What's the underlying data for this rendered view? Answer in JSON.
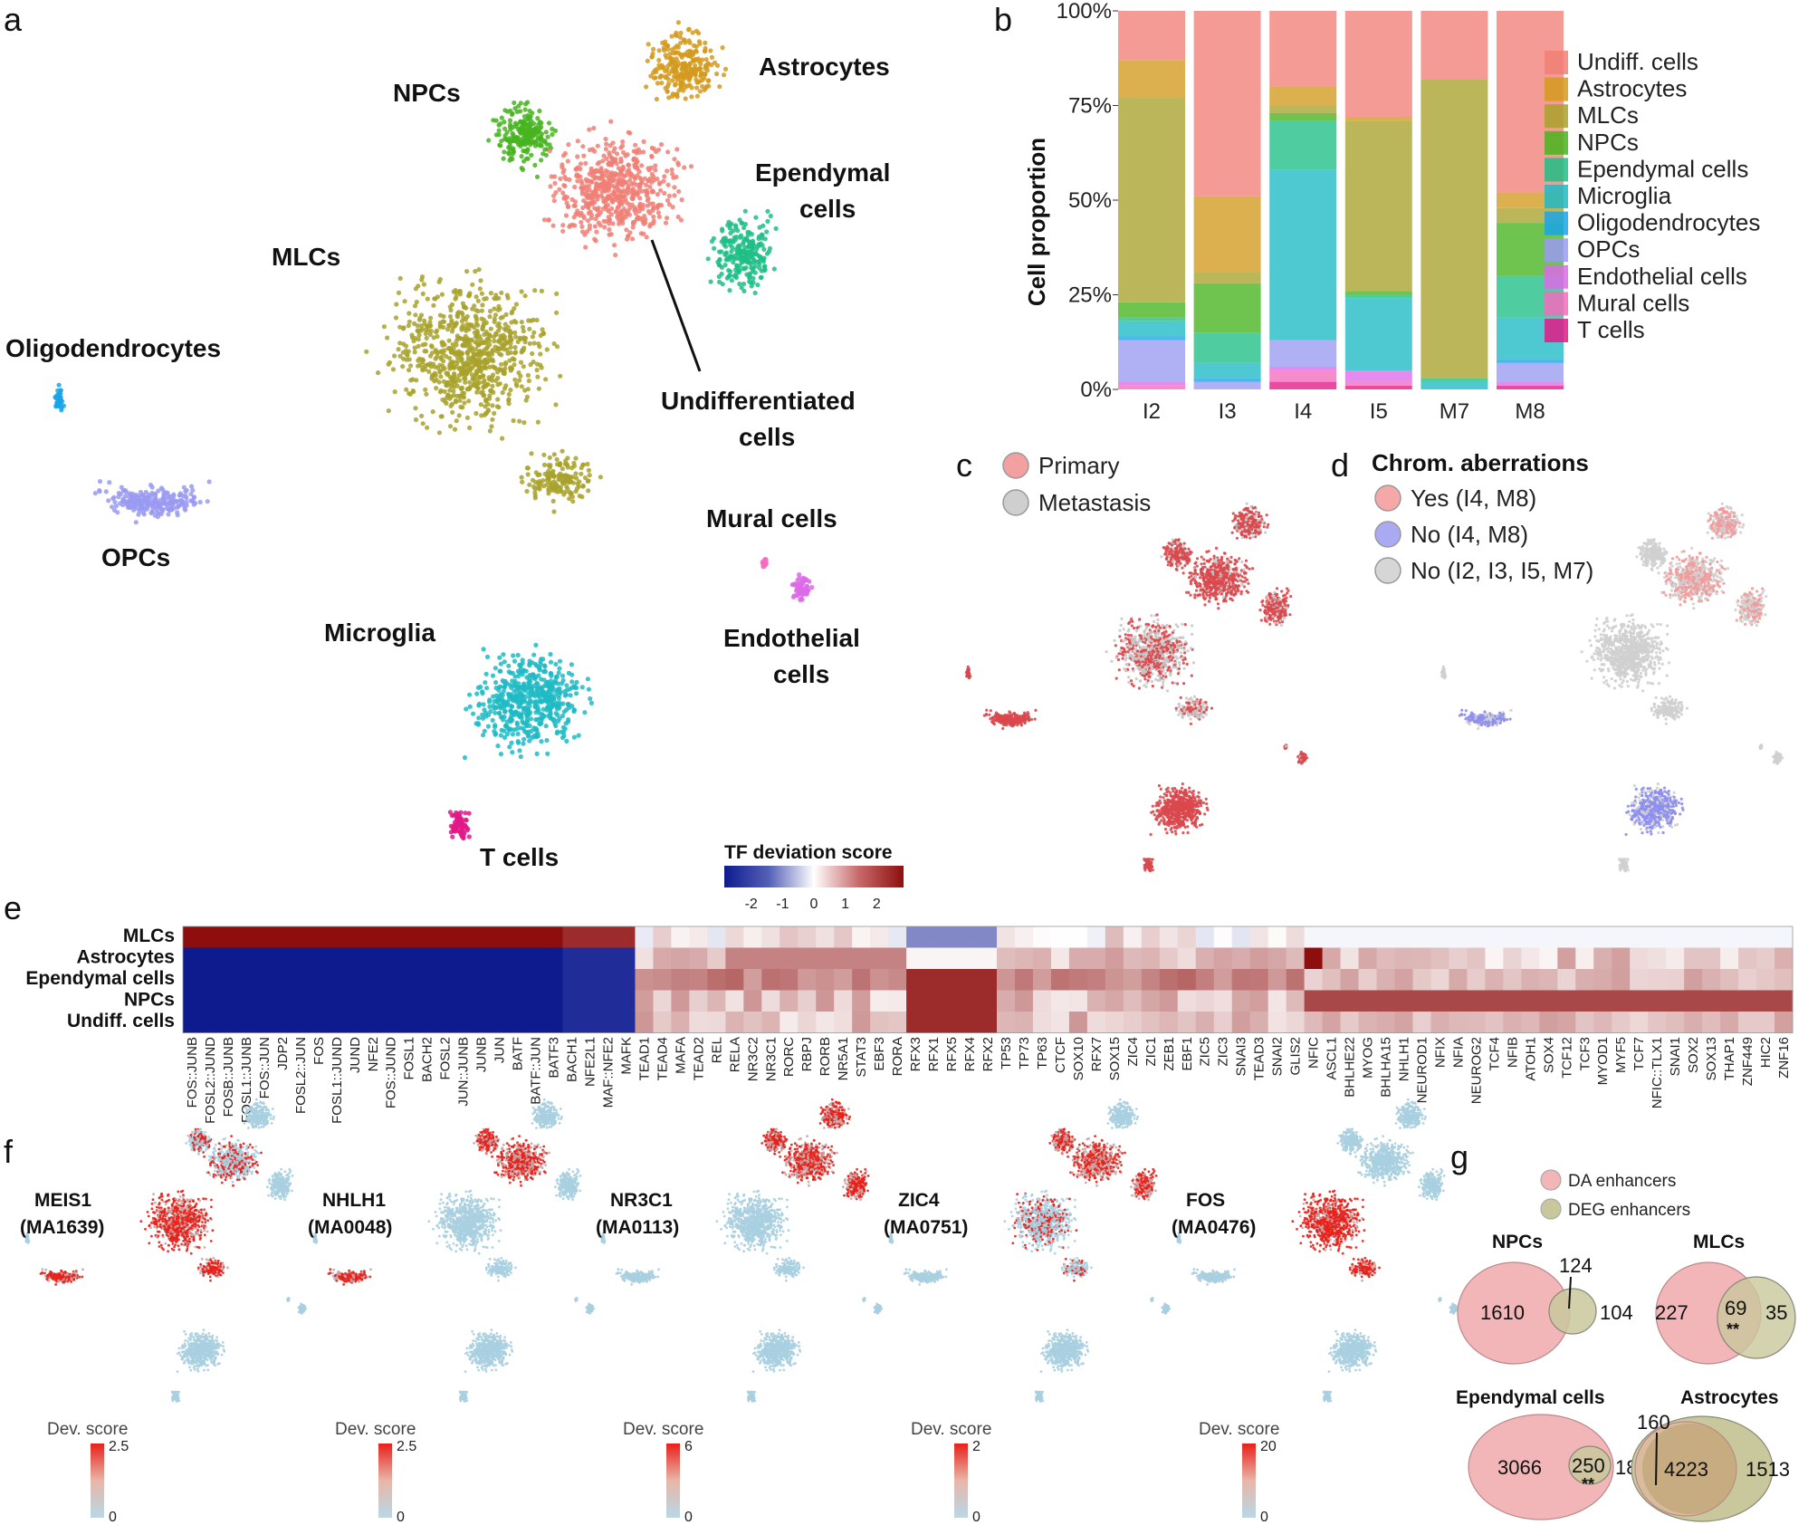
{
  "panels": {
    "a": "a",
    "b": "b",
    "c": "c",
    "d": "d",
    "e": "e",
    "f": "f",
    "g": "g"
  },
  "colors": {
    "undiff": "#f07f76",
    "astro": "#d49a1e",
    "mlc": "#a8a22c",
    "npc": "#46b41f",
    "ependymal": "#1fbe86",
    "microglia": "#1ebac4",
    "oligo": "#1aa4e8",
    "opc": "#9a9af2",
    "endothelial": "#dd6ae8",
    "mural": "#f56bbd",
    "tcells": "#e01a86",
    "primary": "#d9484c",
    "metastasis": "#c8c8c8",
    "chrom_yes": "#f29a9a",
    "chrom_no_i4m8": "#8e8ef0",
    "chrom_no_other": "#cfcfcf",
    "da": "#f2b6b8",
    "deg": "#c9c89c"
  },
  "panel_a": {
    "labels": {
      "astrocytes": "Astrocytes",
      "npcs": "NPCs",
      "ependymal1": "Ependymal",
      "ependymal2": "cells",
      "mlcs": "MLCs",
      "oligo": "Oligodendrocytes",
      "undiff1": "Undifferentiated",
      "undiff2": "cells",
      "opcs": "OPCs",
      "mural": "Mural cells",
      "endo1": "Endothelial",
      "endo2": "cells",
      "microglia": "Microglia",
      "tcells": "T cells"
    }
  },
  "chart_data": [
    {
      "type": "bar",
      "stacked": true,
      "title": "",
      "ylabel": "Cell proportion",
      "xlabel": "",
      "categories": [
        "I2",
        "I3",
        "I4",
        "I5",
        "M7",
        "M8"
      ],
      "yticks": [
        "0%",
        "25%",
        "50%",
        "75%",
        "100%"
      ],
      "ylim": [
        0,
        100
      ],
      "series": [
        {
          "name": "T cells",
          "color": "#e01a86",
          "values": [
            0,
            0,
            2,
            1,
            0,
            1
          ]
        },
        {
          "name": "Mural cells",
          "color": "#f56bbd",
          "values": [
            1,
            0,
            3,
            1,
            0,
            0
          ]
        },
        {
          "name": "Endothelial cells",
          "color": "#dd6ae8",
          "values": [
            1,
            0,
            1,
            3,
            0,
            1
          ]
        },
        {
          "name": "OPCs",
          "color": "#9a9af2",
          "values": [
            11,
            2,
            7,
            0,
            0,
            5
          ]
        },
        {
          "name": "Oligodendrocytes",
          "color": "#1aa4e8",
          "values": [
            1,
            1,
            0,
            0,
            0,
            1
          ]
        },
        {
          "name": "Microglia",
          "color": "#1ebac4",
          "values": [
            4,
            4,
            45,
            19,
            2,
            11
          ]
        },
        {
          "name": "Ependymal cells",
          "color": "#1fbe86",
          "values": [
            1,
            8,
            13,
            1,
            1,
            11
          ]
        },
        {
          "name": "NPCs",
          "color": "#46b41f",
          "values": [
            4,
            13,
            2,
            1,
            0,
            14
          ]
        },
        {
          "name": "MLCs",
          "color": "#a8a22c",
          "values": [
            54,
            3,
            2,
            45,
            79,
            4
          ]
        },
        {
          "name": "Astrocytes",
          "color": "#d49a1e",
          "values": [
            10,
            20,
            5,
            1,
            0,
            4
          ]
        },
        {
          "name": "Undiff. cells",
          "color": "#f07f76",
          "values": [
            13,
            49,
            20,
            28,
            18,
            48
          ]
        }
      ],
      "legend": [
        "Undiff. cells",
        "Astrocytes",
        "MLCs",
        "NPCs",
        "Ependymal cells",
        "Microglia",
        "Oligodendrocytes",
        "OPCs",
        "Endothelial cells",
        "Mural cells",
        "T cells"
      ],
      "legend_position": "right"
    },
    {
      "type": "heatmap",
      "title": "TF deviation score",
      "colorbar_ticks": [
        "-2",
        "-1",
        "0",
        "1",
        "2"
      ],
      "rows": [
        "MLCs",
        "Astrocytes",
        "Ependymal cells",
        "NPCs",
        "Undiff. cells"
      ],
      "columns": [
        "FOS::JUNB",
        "FOSL2::JUND",
        "FOSB::JUNB",
        "FOSL1::JUNB",
        "FOS::JUN",
        "JDP2",
        "FOSL2::JUN",
        "FOS",
        "FOSL1::JUND",
        "JUND",
        "NFE2",
        "FOS::JUND",
        "FOSL1",
        "BACH2",
        "FOSL2",
        "JUN::JUNB",
        "JUNB",
        "JUN",
        "BATF",
        "BATF::JUN",
        "BATF3",
        "BACH1",
        "NFE2L1",
        "MAF::NFE2",
        "MAFK",
        "TEAD1",
        "TEAD4",
        "MAFA",
        "TEAD2",
        "REL",
        "RELA",
        "NR3C2",
        "NR3C1",
        "RORC",
        "RBPJ",
        "RORB",
        "NR5A1",
        "STAT3",
        "EBF3",
        "RORA",
        "RFX3",
        "RFX1",
        "RFX5",
        "RFX4",
        "RFX2",
        "TP53",
        "TP73",
        "TP63",
        "CTCF",
        "SOX10",
        "RFX7",
        "SOX15",
        "ZIC4",
        "ZIC1",
        "ZEB1",
        "EBF1",
        "ZIC5",
        "ZIC3",
        "SNAI3",
        "TEAD3",
        "SNAI2",
        "GLIS2",
        "NFIC",
        "ASCL1",
        "BHLHE22",
        "MYOG",
        "BHLHA15",
        "NHLH1",
        "NEUROD1",
        "NFIX",
        "NFIA",
        "NEUROG2",
        "TCF4",
        "NFIB",
        "ATOH1",
        "SOX4",
        "TCF12",
        "TCF3",
        "MYOD1",
        "MYF5",
        "TCF7",
        "NFIC::TLX1",
        "SNAI1",
        "SOX2",
        "SOX13",
        "THAP1",
        "ZNF449",
        "HIC2",
        "ZNF16"
      ],
      "block_values": [
        {
          "rows": "MLCs",
          "columns": "FOS::JUNB to MAFK",
          "value": 2.5
        },
        {
          "rows": "Astrocytes, Ependymal cells, NPCs, Undiff. cells",
          "columns": "FOS::JUNB to MAFK",
          "value": -2.5
        },
        {
          "rows": "Ependymal cells, NPCs, Undiff. cells",
          "columns": "RFX3 to RFX2",
          "value": 2.2
        },
        {
          "rows": "MLCs",
          "columns": "RFX3 to RFX2",
          "value": -1.3
        },
        {
          "rows": "NPCs",
          "columns": "NFIC to ZNF16",
          "value": 1.9
        }
      ]
    }
  ],
  "panel_c": {
    "legend": [
      "Primary",
      "Metastasis"
    ]
  },
  "panel_d": {
    "title": "Chrom. aberrations",
    "legend": [
      "Yes (I4, M8)",
      "No (I4, M8)",
      "No (I2, I3, I5, M7)"
    ]
  },
  "panel_f": {
    "colorbar_title": "Dev. score",
    "motifs": [
      {
        "name": "MEIS1",
        "id": "(MA1639)",
        "max": "2.5",
        "min": "0"
      },
      {
        "name": "NHLH1",
        "id": "(MA0048)",
        "max": "2.5",
        "min": "0"
      },
      {
        "name": "NR3C1",
        "id": "(MA0113)",
        "max": "6",
        "min": "0"
      },
      {
        "name": "ZIC4",
        "id": "(MA0751)",
        "max": "2",
        "min": "0"
      },
      {
        "name": "FOS",
        "id": "(MA0476)",
        "max": "20",
        "min": "0"
      }
    ]
  },
  "panel_g": {
    "legend": [
      "DA enhancers",
      "DEG enhancers"
    ],
    "venns": [
      {
        "title": "NPCs",
        "da_only": "1610",
        "overlap": "124",
        "deg_only": "104",
        "sig": ""
      },
      {
        "title": "MLCs",
        "da_only": "227",
        "overlap": "69",
        "deg_only": "35",
        "sig": "**"
      },
      {
        "title": "Ependymal cells",
        "da_only": "3066",
        "overlap": "250",
        "deg_only": "18",
        "sig": "**"
      },
      {
        "title": "Astrocytes",
        "da_only": "160",
        "overlap": "4223",
        "deg_only": "1513",
        "sig": ""
      }
    ]
  }
}
